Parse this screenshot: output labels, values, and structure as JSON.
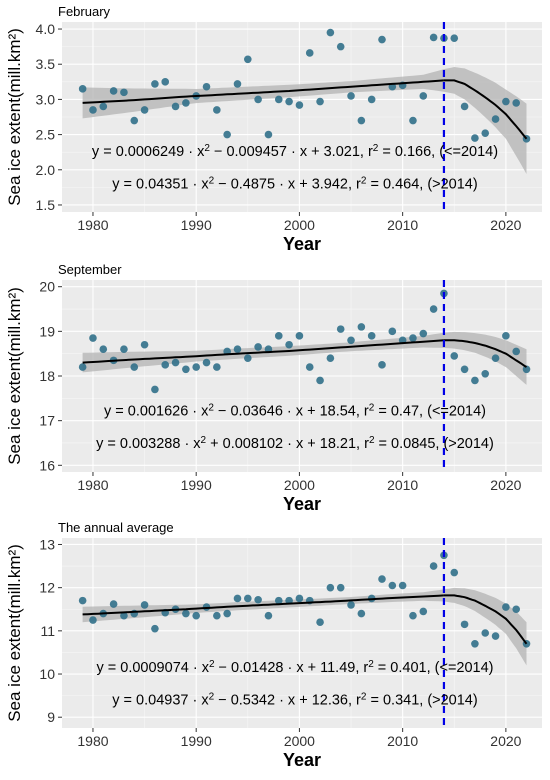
{
  "chart_data": [
    {
      "type": "scatter",
      "title": "February",
      "xlabel": "Year",
      "ylabel": "Sea ice extent(mill.km²)",
      "xlim": [
        1977,
        2023.5
      ],
      "ylim": [
        1.4,
        4.1
      ],
      "xticks": [
        1980,
        1990,
        2000,
        2010,
        2020
      ],
      "yticks": [
        1.5,
        2.0,
        2.5,
        3.0,
        3.5,
        4.0
      ],
      "ytick_labels": [
        "1.5",
        "2.0",
        "2.5",
        "3.0",
        "3.5",
        "4.0"
      ],
      "grid": true,
      "cutoff_year": 2014,
      "x": [
        1979,
        1980,
        1981,
        1982,
        1983,
        1984,
        1985,
        1986,
        1987,
        1988,
        1989,
        1990,
        1991,
        1992,
        1993,
        1994,
        1995,
        1996,
        1997,
        1998,
        1999,
        2000,
        2001,
        2002,
        2003,
        2004,
        2005,
        2006,
        2007,
        2008,
        2009,
        2010,
        2011,
        2012,
        2013,
        2014,
        2015,
        2016,
        2017,
        2018,
        2019,
        2020,
        2021,
        2022
      ],
      "y": [
        3.15,
        2.85,
        2.9,
        3.12,
        3.1,
        2.7,
        2.85,
        3.22,
        3.25,
        2.9,
        2.95,
        3.05,
        3.18,
        2.85,
        2.5,
        3.22,
        3.57,
        3.0,
        2.5,
        3.0,
        2.97,
        2.92,
        3.66,
        2.97,
        3.95,
        3.75,
        3.05,
        2.7,
        3.0,
        3.85,
        3.18,
        3.2,
        2.7,
        3.05,
        3.88,
        3.87,
        3.87,
        2.9,
        2.45,
        2.52,
        2.72,
        2.97,
        2.95,
        2.44
      ],
      "fit_early": [
        [
          1979,
          2.95
        ],
        [
          1984,
          2.99
        ],
        [
          1989,
          3.04
        ],
        [
          1994,
          3.08
        ],
        [
          1999,
          3.12
        ],
        [
          2004,
          3.17
        ],
        [
          2009,
          3.22
        ],
        [
          2014,
          3.27
        ]
      ],
      "fit_late": [
        [
          2014,
          3.27
        ],
        [
          2015,
          3.27
        ],
        [
          2016,
          3.22
        ],
        [
          2017,
          3.13
        ],
        [
          2018,
          3.03
        ],
        [
          2019,
          2.92
        ],
        [
          2020,
          2.79
        ],
        [
          2021,
          2.62
        ],
        [
          2022,
          2.44
        ]
      ],
      "band_halfwidth": [
        [
          1979,
          0.22
        ],
        [
          1990,
          0.1
        ],
        [
          2005,
          0.08
        ],
        [
          2012,
          0.1
        ],
        [
          2014,
          0.16
        ],
        [
          2017,
          0.25
        ],
        [
          2020,
          0.35
        ],
        [
          2022,
          0.5
        ]
      ],
      "equations": [
        "y = 0.0006249 · x² − 0.009457 · x + 3.021,  r² = 0.166, (<=2014)",
        "y = 0.04351 · x² − 0.4875 · x + 3.942,  r² = 0.464, (>2014)"
      ]
    },
    {
      "type": "scatter",
      "title": "September",
      "xlabel": "Year",
      "ylabel": "Sea ice extent(mill.km²)",
      "xlim": [
        1977,
        2023.5
      ],
      "ylim": [
        15.85,
        20.15
      ],
      "xticks": [
        1980,
        1990,
        2000,
        2010,
        2020
      ],
      "yticks": [
        16,
        17,
        18,
        19,
        20
      ],
      "ytick_labels": [
        "16",
        "17",
        "18",
        "19",
        "20"
      ],
      "grid": true,
      "cutoff_year": 2014,
      "x": [
        1979,
        1980,
        1981,
        1982,
        1983,
        1984,
        1985,
        1986,
        1987,
        1988,
        1989,
        1990,
        1991,
        1992,
        1993,
        1994,
        1995,
        1996,
        1997,
        1998,
        1999,
        2000,
        2001,
        2002,
        2003,
        2004,
        2005,
        2006,
        2007,
        2008,
        2009,
        2010,
        2011,
        2012,
        2013,
        2014,
        2015,
        2016,
        2017,
        2018,
        2019,
        2020,
        2021,
        2022
      ],
      "y": [
        18.2,
        18.85,
        18.6,
        18.35,
        18.6,
        18.2,
        18.7,
        17.7,
        18.25,
        18.3,
        18.15,
        18.2,
        18.3,
        18.2,
        18.55,
        18.6,
        18.4,
        18.65,
        18.6,
        18.9,
        18.7,
        18.9,
        18.2,
        17.9,
        18.4,
        19.05,
        18.8,
        19.1,
        18.9,
        18.25,
        19.0,
        18.8,
        18.85,
        18.95,
        19.5,
        19.85,
        18.45,
        18.15,
        17.9,
        18.05,
        18.4,
        18.9,
        18.55,
        18.15
      ],
      "fit_early": [
        [
          1979,
          18.3
        ],
        [
          1984,
          18.37
        ],
        [
          1989,
          18.43
        ],
        [
          1994,
          18.5
        ],
        [
          1999,
          18.56
        ],
        [
          2004,
          18.64
        ],
        [
          2009,
          18.72
        ],
        [
          2014,
          18.8
        ]
      ],
      "fit_late": [
        [
          2014,
          18.8
        ],
        [
          2015,
          18.8
        ],
        [
          2016,
          18.78
        ],
        [
          2017,
          18.74
        ],
        [
          2018,
          18.68
        ],
        [
          2019,
          18.6
        ],
        [
          2020,
          18.5
        ],
        [
          2021,
          18.35
        ],
        [
          2022,
          18.2
        ]
      ],
      "band_halfwidth": [
        [
          1979,
          0.22
        ],
        [
          1990,
          0.12
        ],
        [
          2005,
          0.1
        ],
        [
          2012,
          0.13
        ],
        [
          2014,
          0.17
        ],
        [
          2017,
          0.22
        ],
        [
          2020,
          0.3
        ],
        [
          2022,
          0.4
        ]
      ],
      "equations": [
        "y = 0.001626 · x² − 0.03646 · x + 18.54,  r² = 0.47, (<=2014)",
        "y = 0.003288 · x² + 0.008102 · x + 18.21,  r² = 0.0845, (>2014)"
      ]
    },
    {
      "type": "scatter",
      "title": "The annual average",
      "xlabel": "Year",
      "ylabel": "Sea ice extent(mill.km²)",
      "xlim": [
        1977,
        2023.5
      ],
      "ylim": [
        8.75,
        13.15
      ],
      "xticks": [
        1980,
        1990,
        2000,
        2010,
        2020
      ],
      "yticks": [
        9,
        10,
        11,
        12,
        13
      ],
      "ytick_labels": [
        "9",
        "10",
        "11",
        "12",
        "13"
      ],
      "grid": true,
      "cutoff_year": 2014,
      "x": [
        1979,
        1980,
        1981,
        1982,
        1983,
        1984,
        1985,
        1986,
        1987,
        1988,
        1989,
        1990,
        1991,
        1992,
        1993,
        1994,
        1995,
        1996,
        1997,
        1998,
        1999,
        2000,
        2001,
        2002,
        2003,
        2004,
        2005,
        2006,
        2007,
        2008,
        2009,
        2010,
        2011,
        2012,
        2013,
        2014,
        2015,
        2016,
        2017,
        2018,
        2019,
        2020,
        2021,
        2022
      ],
      "y": [
        11.7,
        11.25,
        11.4,
        11.62,
        11.35,
        11.4,
        11.6,
        11.05,
        11.42,
        11.5,
        11.4,
        11.35,
        11.55,
        11.35,
        11.4,
        11.75,
        11.75,
        11.72,
        11.35,
        11.7,
        11.7,
        11.75,
        11.7,
        11.2,
        12.0,
        12.0,
        11.6,
        11.4,
        11.75,
        12.2,
        12.05,
        12.05,
        11.35,
        11.45,
        12.5,
        12.75,
        12.35,
        11.15,
        10.7,
        10.95,
        10.88,
        11.55,
        11.5,
        10.7
      ],
      "fit_early": [
        [
          1979,
          11.38
        ],
        [
          1984,
          11.44
        ],
        [
          1989,
          11.5
        ],
        [
          1994,
          11.57
        ],
        [
          1999,
          11.63
        ],
        [
          2004,
          11.69
        ],
        [
          2009,
          11.76
        ],
        [
          2014,
          11.82
        ]
      ],
      "fit_late": [
        [
          2014,
          11.82
        ],
        [
          2015,
          11.82
        ],
        [
          2016,
          11.78
        ],
        [
          2017,
          11.7
        ],
        [
          2018,
          11.58
        ],
        [
          2019,
          11.45
        ],
        [
          2020,
          11.28
        ],
        [
          2021,
          11.02
        ],
        [
          2022,
          10.7
        ]
      ],
      "band_halfwidth": [
        [
          1979,
          0.18
        ],
        [
          1990,
          0.1
        ],
        [
          2005,
          0.08
        ],
        [
          2012,
          0.1
        ],
        [
          2014,
          0.14
        ],
        [
          2017,
          0.24
        ],
        [
          2020,
          0.35
        ],
        [
          2022,
          0.5
        ]
      ],
      "equations": [
        "y = 0.0009074 · x² − 0.01428 · x + 11.49,  r² = 0.401, (<=2014)",
        "y = 0.04937 · x² − 0.5342 · x + 12.36,  r² = 0.341, (>2014)"
      ]
    }
  ]
}
